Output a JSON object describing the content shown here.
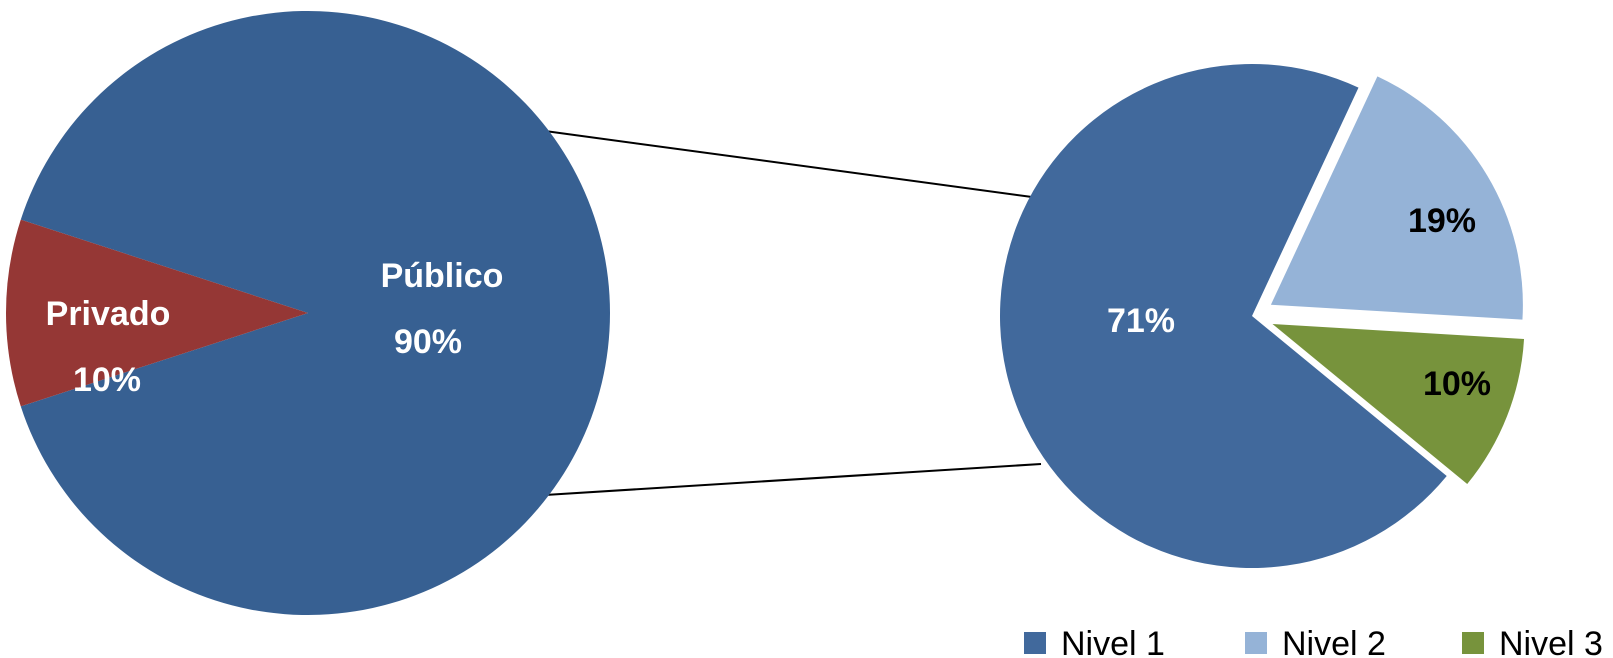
{
  "chart_data": [
    {
      "type": "pie",
      "slices": [
        {
          "name": "Público",
          "value": 90,
          "label": "90%",
          "color": "#376092"
        },
        {
          "name": "Privado",
          "value": 10,
          "label": "10%",
          "color": "#953735"
        }
      ]
    },
    {
      "type": "pie",
      "slices": [
        {
          "name": "Nivel 1",
          "value": 71,
          "label": "71%",
          "color": "#41699C"
        },
        {
          "name": "Nivel 2",
          "value": 19,
          "label": "19%",
          "color": "#95B3D7"
        },
        {
          "name": "Nivel 3",
          "value": 10,
          "label": "10%",
          "color": "#77933C"
        }
      ],
      "legend": [
        "Nivel 1",
        "Nivel 2",
        "Nivel 3"
      ],
      "legend_position": "bottom-right"
    }
  ]
}
